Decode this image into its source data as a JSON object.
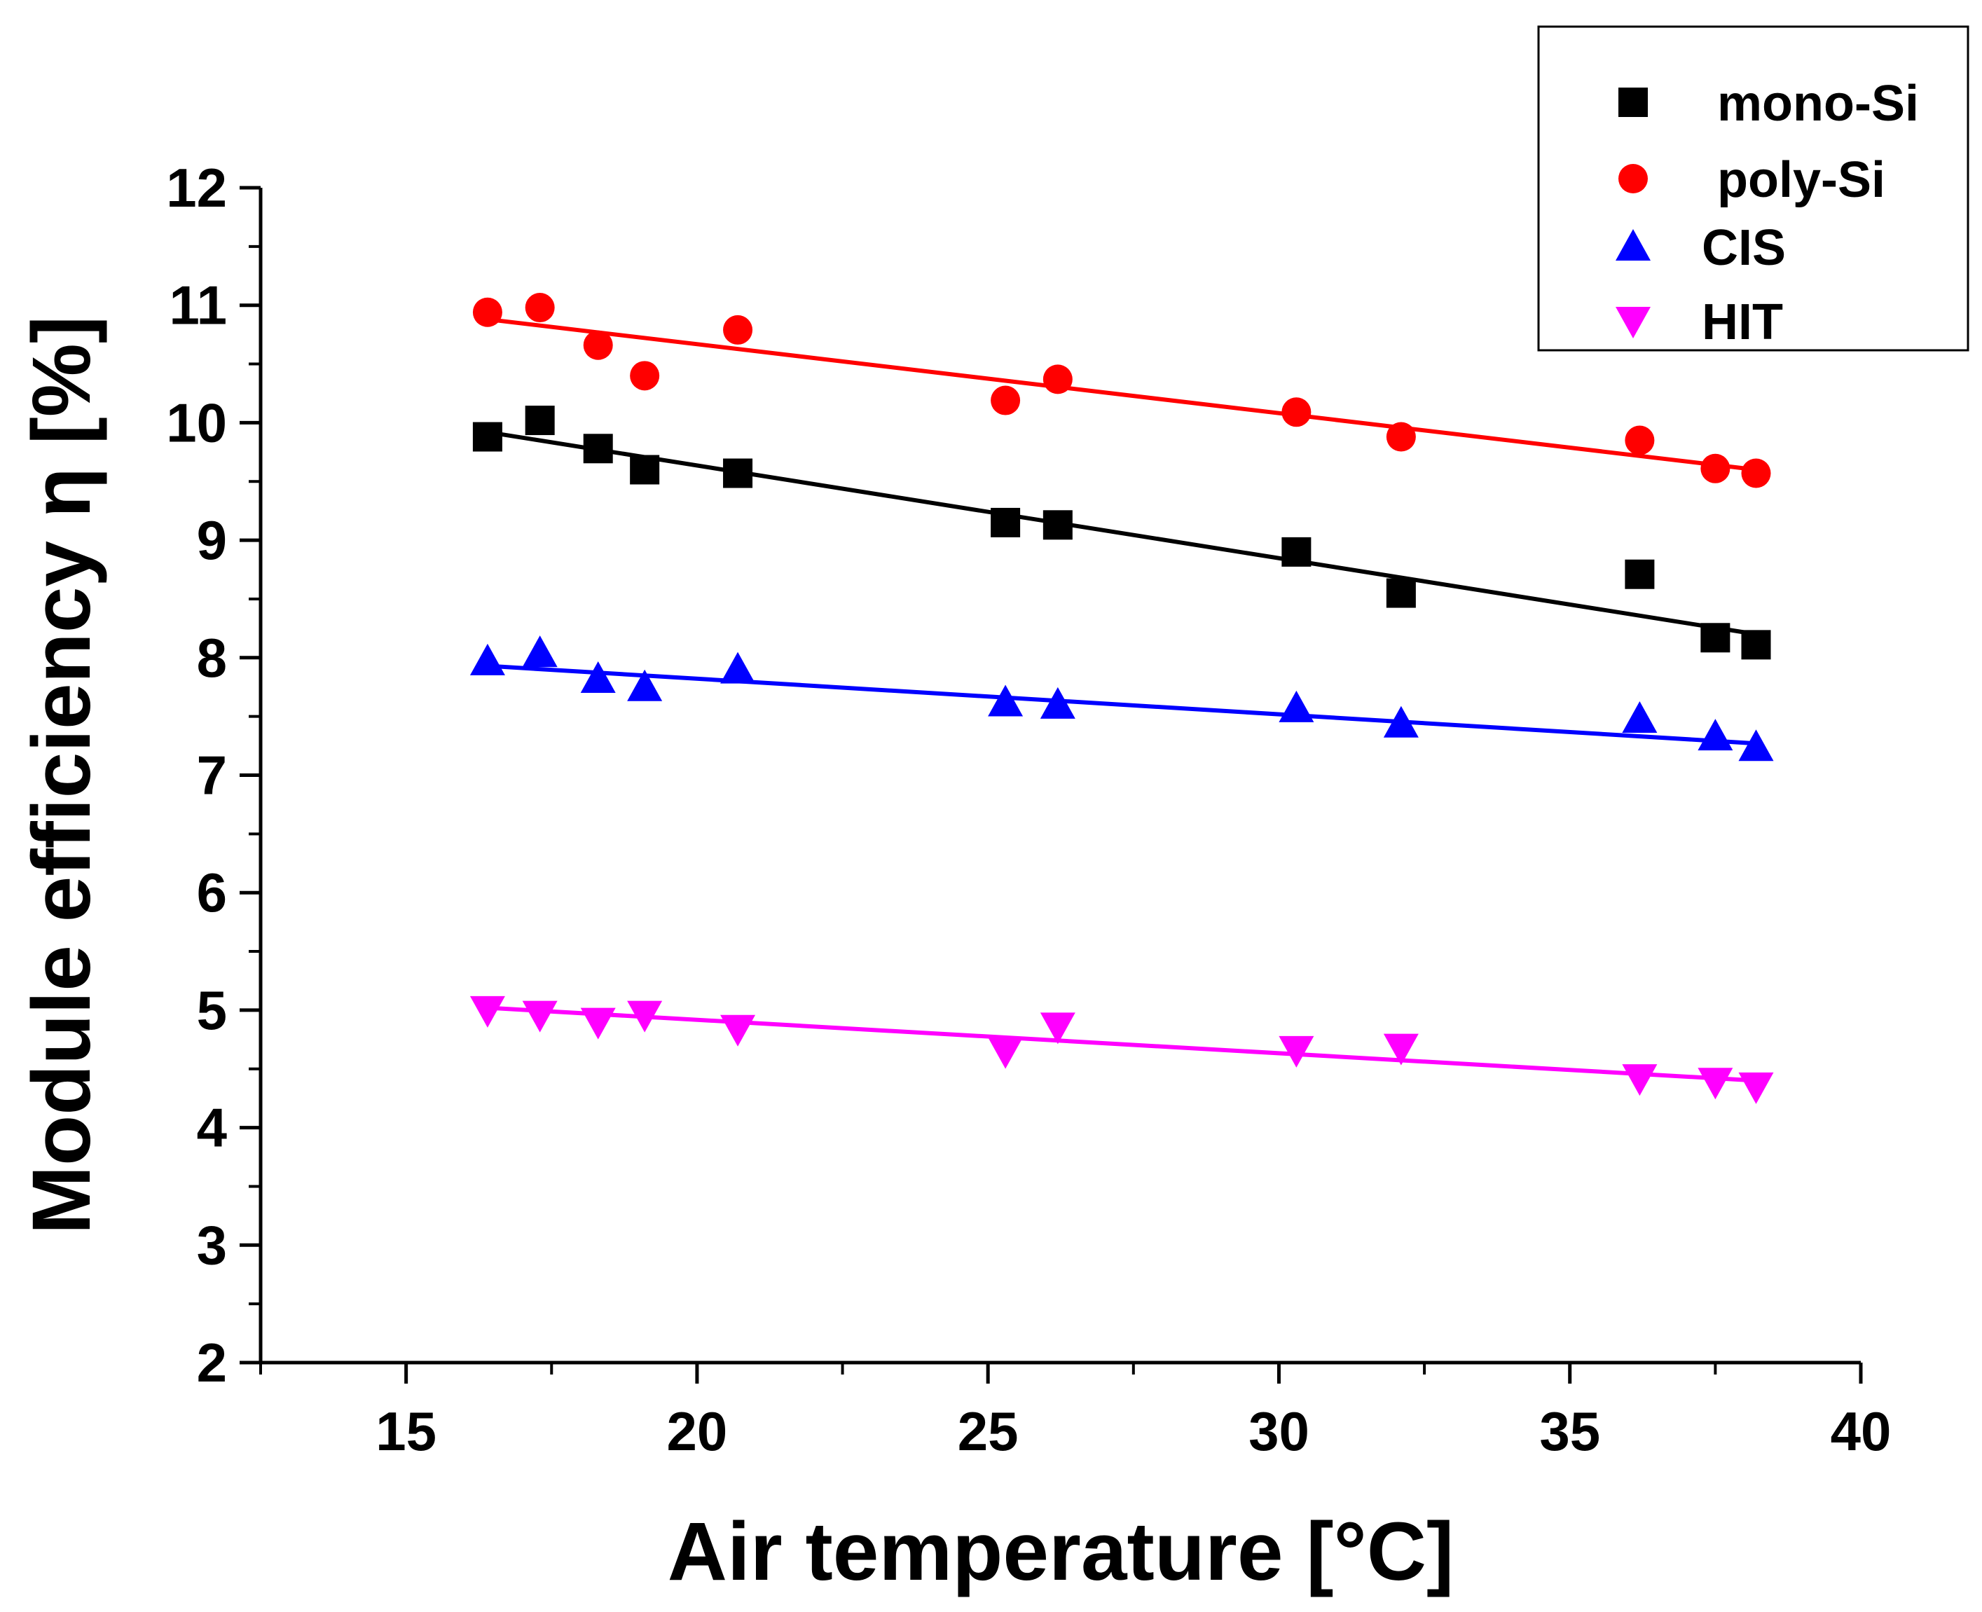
{
  "chart_data": {
    "type": "scatter",
    "xlabel": "Air temperature [°C]",
    "ylabel": "Module efficiency η [%]",
    "xlim": [
      12.5,
      40
    ],
    "ylim": [
      2,
      12
    ],
    "x_ticks": [
      15,
      20,
      25,
      30,
      35,
      40
    ],
    "x_tick_labels": [
      "15",
      "20",
      "25",
      "30",
      "35",
      "40"
    ],
    "y_ticks": [
      2,
      3,
      4,
      5,
      6,
      7,
      8,
      9,
      10,
      11,
      12
    ],
    "y_tick_labels": [
      "2",
      "3",
      "4",
      "5",
      "6",
      "7",
      "8",
      "9",
      "10",
      "11",
      "12"
    ],
    "grid": false,
    "legend_position": "top-right",
    "x": [
      16.4,
      17.3,
      18.3,
      19.1,
      20.7,
      25.3,
      26.2,
      30.3,
      32.1,
      36.2,
      37.5,
      38.2
    ],
    "series": [
      {
        "name": "mono-Si",
        "marker": "square",
        "color": "#000000",
        "values": [
          9.88,
          10.02,
          9.78,
          9.6,
          9.57,
          9.15,
          9.13,
          8.9,
          8.55,
          8.71,
          8.17,
          8.11
        ],
        "fit": [
          9.92,
          8.2
        ]
      },
      {
        "name": "poly-Si",
        "marker": "circle",
        "color": "#ff0000",
        "values": [
          10.94,
          10.98,
          10.66,
          10.4,
          10.79,
          10.19,
          10.37,
          10.09,
          9.88,
          9.85,
          9.61,
          9.57
        ],
        "fit": [
          10.88,
          9.6
        ]
      },
      {
        "name": "CIS",
        "marker": "triangle-up",
        "color": "#0000ff",
        "values": [
          7.97,
          8.04,
          7.82,
          7.75,
          7.9,
          7.62,
          7.6,
          7.57,
          7.44,
          7.48,
          7.33,
          7.24
        ],
        "fit": [
          7.93,
          7.27
        ]
      },
      {
        "name": "HIT",
        "marker": "triangle-down",
        "color": "#ff00ff",
        "values": [
          5.0,
          4.96,
          4.9,
          4.96,
          4.84,
          4.65,
          4.86,
          4.66,
          4.68,
          4.42,
          4.39,
          4.35
        ],
        "fit": [
          5.02,
          4.4
        ]
      }
    ]
  }
}
